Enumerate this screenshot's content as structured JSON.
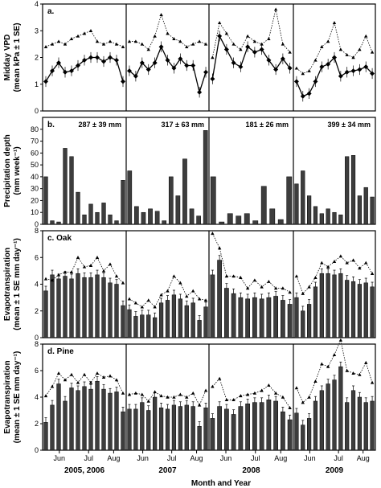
{
  "chart_data": {
    "type": "multi-panel",
    "x_months": [
      "Jun",
      "Jul",
      "Aug"
    ],
    "year_labels": [
      "2005, 2006",
      "2007",
      "2008",
      "2009"
    ],
    "xlabel": "Month and Year",
    "panels": [
      {
        "key": "a",
        "letter": "a.",
        "type": "line",
        "ylabel_lines": [
          "Midday VPD",
          "(mean kPa ± 1 SE)"
        ],
        "ylim": [
          0,
          4
        ],
        "yticks": [
          "0",
          "1",
          "2",
          "3",
          "4"
        ],
        "series": [
          {
            "values": [
              [
                1.1,
                1.5,
                1.8,
                1.45,
                1.5,
                1.7,
                1.9,
                2.0,
                2.0,
                1.85,
                2.0,
                1.9,
                1.1
              ],
              [
                1.5,
                1.3,
                1.8,
                1.55,
                1.8,
                2.4,
                1.9,
                1.6,
                1.95,
                1.7,
                1.7,
                0.7,
                1.45
              ],
              [
                1.2,
                2.8,
                2.3,
                1.8,
                1.65,
                2.4,
                2.2,
                2.3,
                1.9,
                1.55,
                1.95,
                1.6
              ],
              [
                1.1,
                0.55,
                0.65,
                1.1,
                1.65,
                1.75,
                2.0,
                1.3,
                1.45,
                1.5,
                1.55,
                1.65,
                1.4
              ]
            ]
          },
          {
            "values": [
              [
                2.4,
                2.5,
                2.6,
                2.5,
                2.7,
                2.8,
                2.9,
                3.0,
                2.6,
                2.5,
                2.6,
                2.5,
                2.4
              ],
              [
                2.6,
                2.6,
                2.5,
                2.3,
                2.8,
                3.6,
                2.9,
                2.7,
                2.6,
                2.4,
                2.5,
                2.6,
                2.5
              ],
              [
                2.0,
                3.3,
                2.9,
                2.5,
                2.3,
                2.8,
                2.6,
                2.5,
                2.7,
                3.8,
                2.5,
                2.2
              ],
              [
                1.6,
                1.4,
                1.5,
                1.9,
                2.4,
                2.6,
                3.3,
                2.3,
                2.1,
                2.0,
                2.3,
                2.8,
                2.2
              ]
            ]
          }
        ]
      },
      {
        "key": "b",
        "letter": "b.",
        "type": "bar",
        "ylabel_lines": [
          "Precipitation depth",
          "(mm week⁻¹)"
        ],
        "ylim": [
          0,
          90
        ],
        "yticks": [
          "0",
          "10",
          "20",
          "30",
          "40",
          "50",
          "60",
          "70",
          "80"
        ],
        "annotations": [
          "287 ± 39 mm",
          "317 ± 63 mm",
          "181 ± 26 mm",
          "399 ± 34 mm"
        ],
        "values": [
          [
            40,
            3,
            2,
            64,
            57,
            27,
            8,
            17,
            10,
            18,
            8,
            3,
            37
          ],
          [
            45,
            15,
            10,
            13,
            11,
            3,
            40,
            24,
            55,
            13,
            7,
            79
          ],
          [
            40,
            2,
            9,
            7,
            9,
            3,
            32,
            13,
            4,
            40
          ],
          [
            34,
            45,
            24,
            15,
            9,
            13,
            10,
            8,
            57,
            58,
            24,
            31,
            23
          ]
        ]
      },
      {
        "key": "c",
        "letter": "c. Oak",
        "type": "bar",
        "ylabel_lines": [
          "Evapotranspiration",
          "(mean ± 1 SE mm day⁻¹)"
        ],
        "ylim": [
          0,
          8
        ],
        "yticks": [
          "0",
          "2",
          "4",
          "6",
          "8"
        ],
        "values": [
          [
            3.5,
            4.7,
            4.4,
            4.6,
            4.4,
            4.8,
            4.5,
            4.5,
            4.7,
            4.5,
            4.1,
            4.0,
            2.4
          ],
          [
            2.1,
            1.6,
            1.7,
            1.7,
            1.5,
            2.6,
            2.8,
            3.2,
            2.9,
            2.4,
            2.6,
            1.3,
            2.3
          ],
          [
            4.7,
            5.8,
            3.7,
            3.3,
            3.0,
            2.9,
            3.0,
            2.9,
            3.0,
            3.1,
            2.8,
            2.5
          ],
          [
            3.0,
            2.0,
            2.5,
            3.8,
            4.8,
            4.8,
            4.7,
            4.8,
            4.3,
            4.2,
            4.0,
            4.1,
            3.8
          ]
        ],
        "upper": [
          [
            4.4,
            4.3,
            4.7,
            4.9,
            4.9,
            6.0,
            5.3,
            5.4,
            6.0,
            5.0,
            5.5,
            4.6,
            4.1
          ],
          [
            2.9,
            2.6,
            2.3,
            2.8,
            2.3,
            3.2,
            3.5,
            4.6,
            4.1,
            3.1,
            3.5,
            2.9,
            2.8
          ],
          [
            7.8,
            6.7,
            4.6,
            4.6,
            4.5,
            3.7,
            4.3,
            3.8,
            4.2,
            3.7,
            3.7,
            3.4
          ],
          [
            4.6,
            3.3,
            3.8,
            4.5,
            5.6,
            5.3,
            5.7,
            6.1,
            5.6,
            5.8,
            5.2,
            5.6,
            4.8
          ]
        ]
      },
      {
        "key": "d",
        "letter": "d. Pine",
        "type": "bar",
        "ylabel_lines": [
          "Evapotranspiration",
          "(mean ± 1 SE mm day⁻¹)"
        ],
        "ylim": [
          0,
          8
        ],
        "yticks": [
          "0",
          "2",
          "4",
          "6",
          "8"
        ],
        "values": [
          [
            2.1,
            3.4,
            5.0,
            3.7,
            4.7,
            4.5,
            4.8,
            4.6,
            5.2,
            4.6,
            4.3,
            4.4,
            2.9
          ],
          [
            3.1,
            3.1,
            3.6,
            3.0,
            4.0,
            3.2,
            3.1,
            3.4,
            3.3,
            3.4,
            3.3,
            1.8,
            3.2
          ],
          [
            2.4,
            3.3,
            3.1,
            2.7,
            3.3,
            3.5,
            3.6,
            3.6,
            3.8,
            3.7,
            2.9,
            2.3
          ],
          [
            2.8,
            1.9,
            2.4,
            3.7,
            4.5,
            5.0,
            5.3,
            6.3,
            3.6,
            4.5,
            4.0,
            3.6,
            3.7
          ]
        ],
        "upper": [
          [
            4.1,
            4.8,
            5.8,
            5.3,
            5.7,
            5.1,
            5.7,
            5.1,
            5.8,
            5.5,
            5.6,
            5.3,
            4.3
          ],
          [
            4.2,
            4.3,
            4.2,
            3.7,
            4.4,
            4.1,
            4.0,
            4.0,
            4.2,
            4.0,
            4.3,
            3.4,
            4.5
          ],
          [
            4.8,
            5.4,
            3.8,
            3.8,
            4.1,
            4.2,
            4.3,
            4.5,
            4.9,
            4.3,
            4.0,
            3.2
          ],
          [
            4.7,
            3.6,
            4.0,
            5.2,
            6.5,
            6.3,
            7.2,
            8.3,
            6.0,
            5.8,
            5.7,
            6.6,
            5.1
          ]
        ]
      }
    ]
  }
}
